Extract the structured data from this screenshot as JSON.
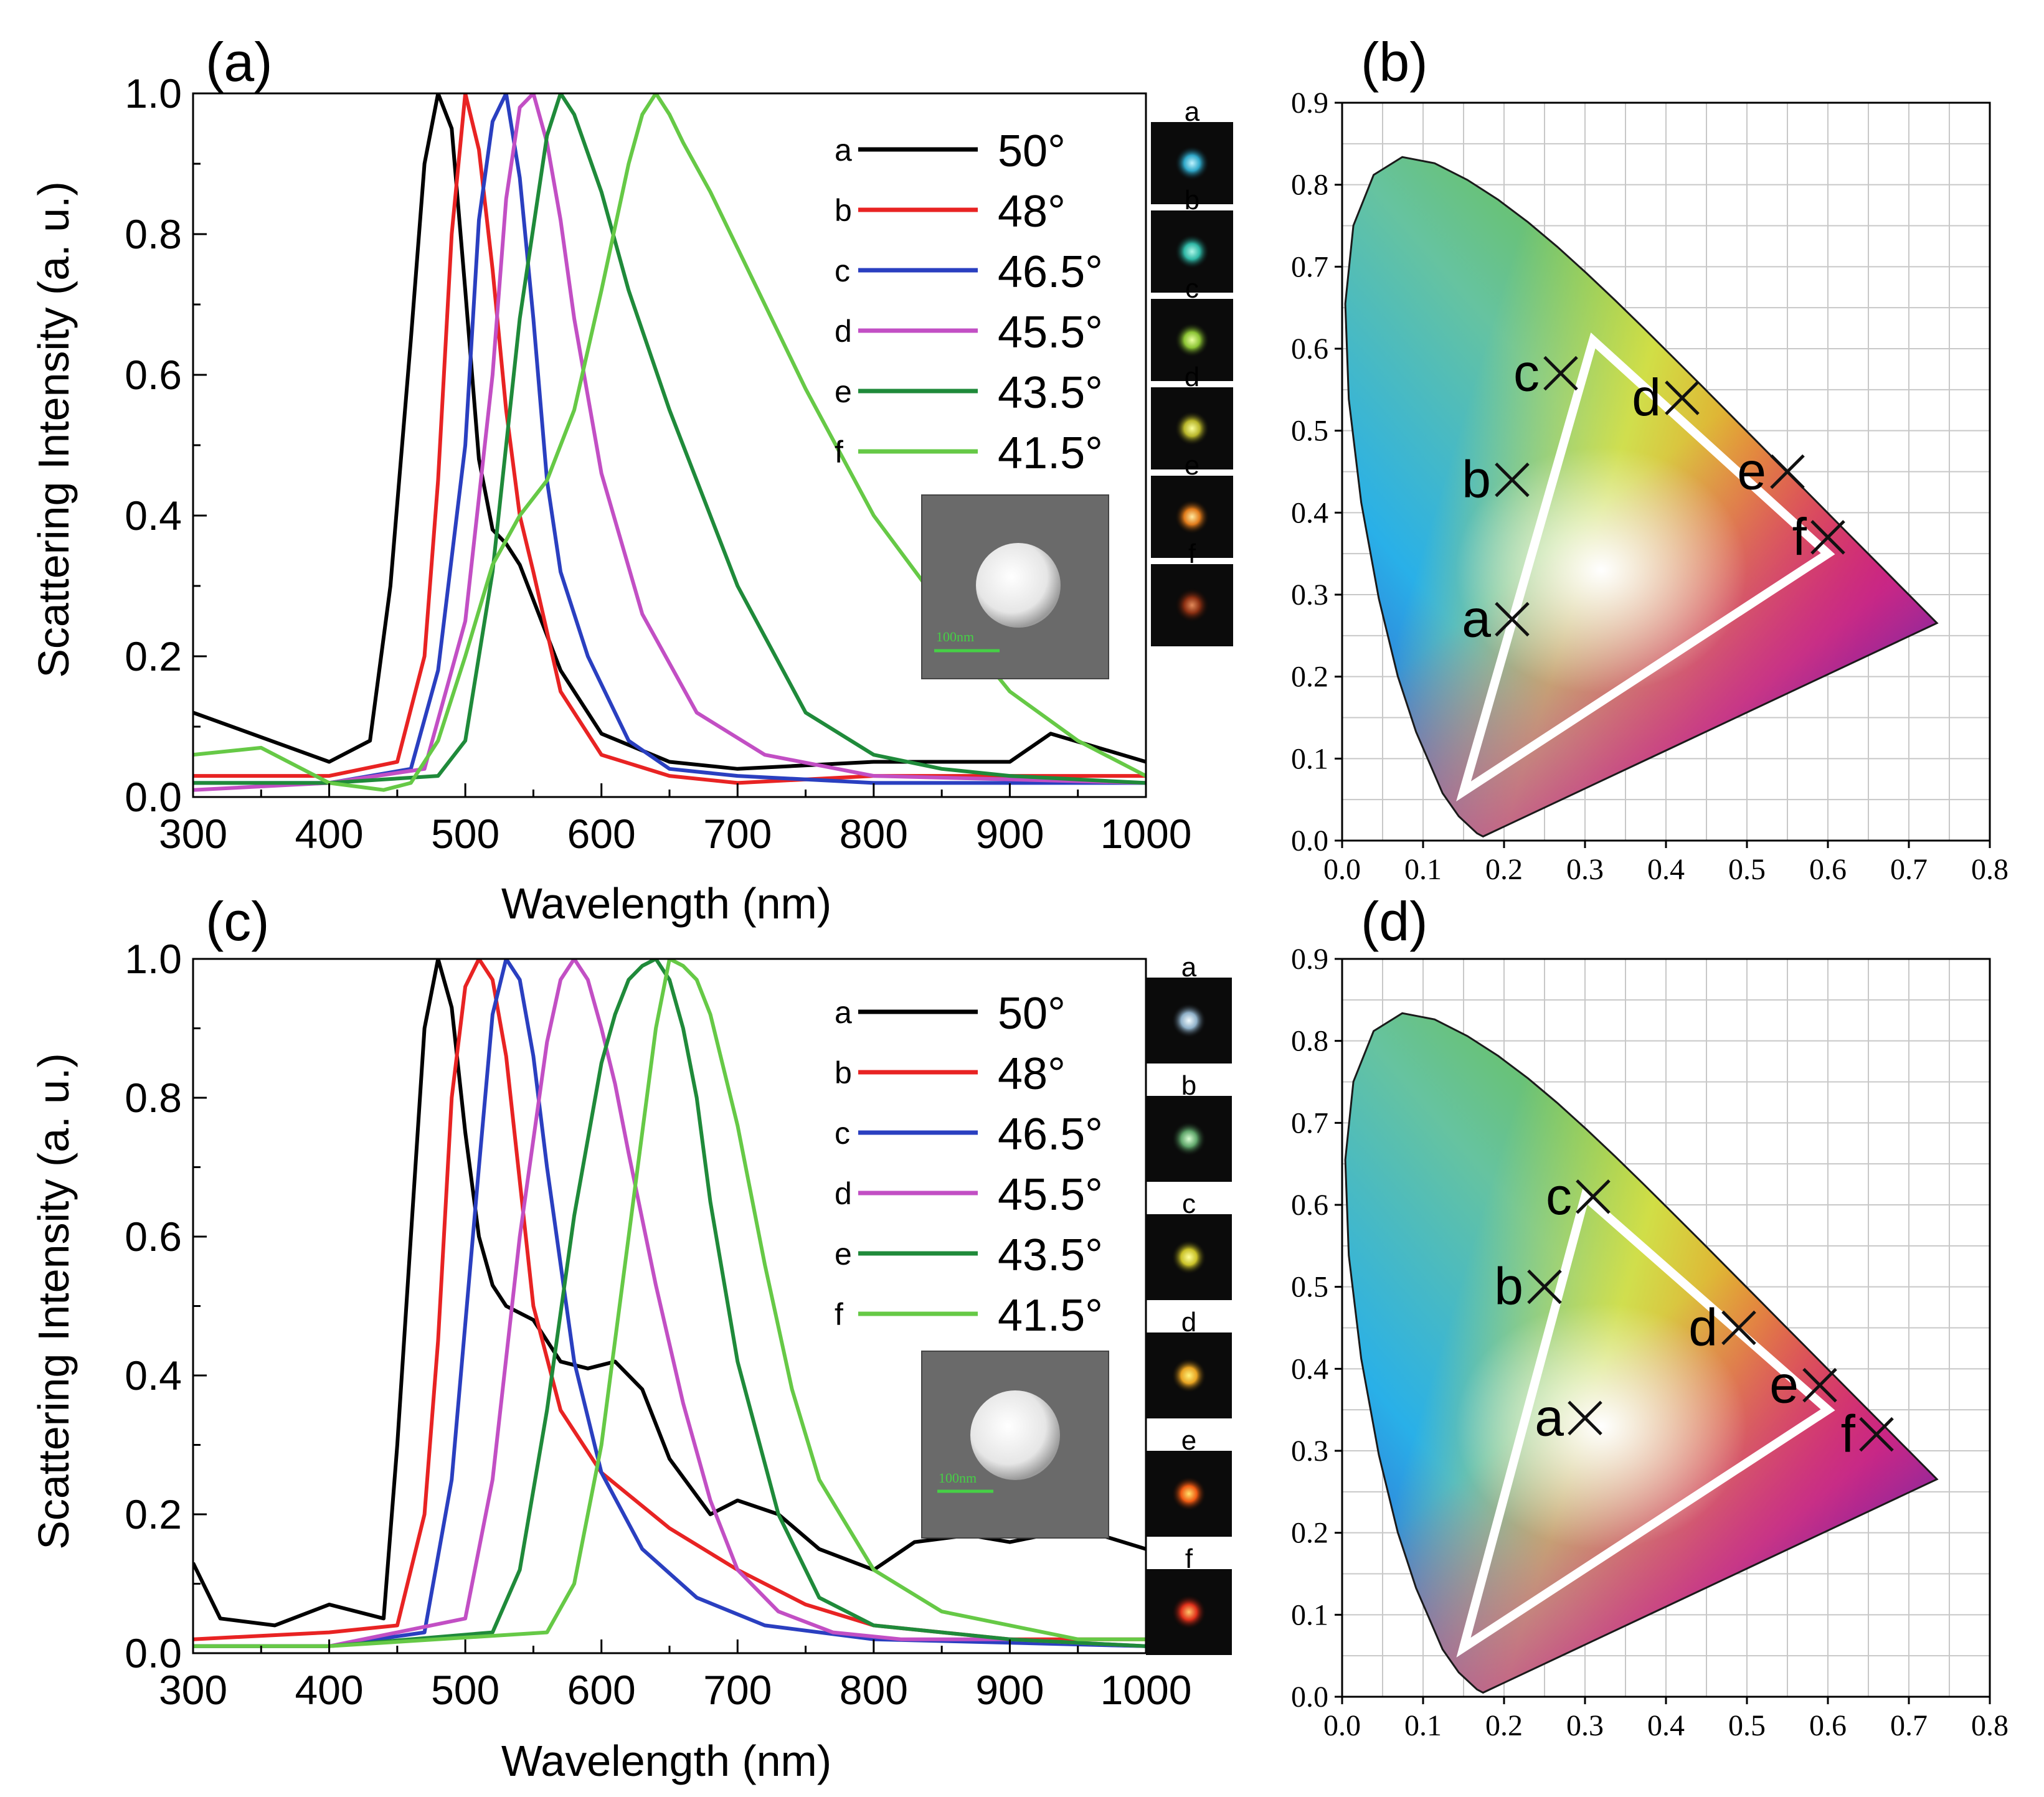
{
  "figure": {
    "panel_labels": [
      "(a)",
      "(b)",
      "(c)",
      "(d)"
    ],
    "thumb_letters": [
      "a",
      "b",
      "c",
      "d",
      "e",
      "f"
    ],
    "sem_scale_label": "100nm"
  },
  "colors": {
    "a": "#000000",
    "b": "#e82323",
    "c": "#2a3fc0",
    "d": "#c24fc4",
    "e": "#1f8a3a",
    "f": "#66c946",
    "gamut_triangle": "#ffffff",
    "grid": "#c8c8c8"
  },
  "chart_data": [
    {
      "panel": "(a)",
      "type": "line",
      "xlabel": "Wavelength (nm)",
      "ylabel": "Scattering Intensity (a. u.)",
      "xlim": [
        300,
        1000
      ],
      "ylim": [
        0.0,
        1.0
      ],
      "xticks": [
        "300",
        "400",
        "500",
        "600",
        "700",
        "800",
        "900",
        "1000"
      ],
      "yticks": [
        "0.0",
        "0.2",
        "0.4",
        "0.6",
        "0.8",
        "1.0"
      ],
      "series": [
        {
          "key": "a",
          "name": "50°",
          "x": [
            300,
            400,
            430,
            445,
            460,
            470,
            480,
            490,
            500,
            510,
            520,
            530,
            540,
            550,
            570,
            600,
            650,
            700,
            800,
            900,
            930,
            1000
          ],
          "values": [
            0.12,
            0.05,
            0.08,
            0.3,
            0.65,
            0.9,
            1.0,
            0.95,
            0.72,
            0.48,
            0.38,
            0.36,
            0.33,
            0.28,
            0.18,
            0.09,
            0.05,
            0.04,
            0.05,
            0.05,
            0.09,
            0.05
          ]
        },
        {
          "key": "b",
          "name": "48°",
          "x": [
            300,
            400,
            450,
            470,
            480,
            490,
            500,
            510,
            520,
            530,
            540,
            550,
            570,
            600,
            650,
            700,
            800,
            1000
          ],
          "values": [
            0.03,
            0.03,
            0.05,
            0.2,
            0.45,
            0.8,
            1.0,
            0.92,
            0.75,
            0.55,
            0.4,
            0.32,
            0.15,
            0.06,
            0.03,
            0.02,
            0.03,
            0.03
          ]
        },
        {
          "key": "c",
          "name": "46.5°",
          "x": [
            300,
            400,
            460,
            480,
            500,
            510,
            520,
            530,
            540,
            550,
            560,
            570,
            590,
            620,
            650,
            700,
            800,
            1000
          ],
          "values": [
            0.02,
            0.02,
            0.04,
            0.18,
            0.5,
            0.82,
            0.96,
            1.0,
            0.88,
            0.68,
            0.45,
            0.32,
            0.2,
            0.08,
            0.04,
            0.03,
            0.02,
            0.02
          ]
        },
        {
          "key": "d",
          "name": "45.5°",
          "x": [
            300,
            400,
            470,
            500,
            520,
            530,
            540,
            550,
            560,
            570,
            580,
            600,
            630,
            670,
            720,
            800,
            1000
          ],
          "values": [
            0.01,
            0.02,
            0.04,
            0.25,
            0.6,
            0.85,
            0.98,
            1.0,
            0.93,
            0.82,
            0.68,
            0.46,
            0.26,
            0.12,
            0.06,
            0.03,
            0.02
          ]
        },
        {
          "key": "e",
          "name": "43.5°",
          "x": [
            300,
            400,
            480,
            500,
            520,
            540,
            560,
            570,
            580,
            600,
            620,
            650,
            700,
            750,
            800,
            850,
            900,
            1000
          ],
          "values": [
            0.02,
            0.02,
            0.03,
            0.08,
            0.32,
            0.68,
            0.94,
            1.0,
            0.97,
            0.86,
            0.72,
            0.55,
            0.3,
            0.12,
            0.06,
            0.04,
            0.03,
            0.02
          ]
        },
        {
          "key": "f",
          "name": "41.5°",
          "x": [
            300,
            350,
            400,
            440,
            460,
            480,
            500,
            520,
            540,
            560,
            580,
            600,
            620,
            630,
            640,
            650,
            660,
            680,
            700,
            750,
            800,
            850,
            900,
            950,
            1000
          ],
          "values": [
            0.06,
            0.07,
            0.02,
            0.01,
            0.02,
            0.08,
            0.2,
            0.33,
            0.4,
            0.45,
            0.55,
            0.72,
            0.9,
            0.97,
            1.0,
            0.97,
            0.93,
            0.86,
            0.78,
            0.58,
            0.4,
            0.27,
            0.15,
            0.08,
            0.03
          ]
        }
      ]
    },
    {
      "panel": "(b)",
      "type": "scatter",
      "xlim": [
        0.0,
        0.8
      ],
      "ylim": [
        0.0,
        0.9
      ],
      "xticks": [
        "0.0",
        "0.1",
        "0.2",
        "0.3",
        "0.4",
        "0.5",
        "0.6",
        "0.7",
        "0.8"
      ],
      "yticks": [
        "0.0",
        "0.1",
        "0.2",
        "0.3",
        "0.4",
        "0.5",
        "0.6",
        "0.7",
        "0.8",
        "0.9"
      ],
      "gamut_triangle": [
        [
          0.15,
          0.06
        ],
        [
          0.31,
          0.61
        ],
        [
          0.6,
          0.35
        ]
      ],
      "points": [
        {
          "label": "a",
          "x": 0.21,
          "y": 0.27
        },
        {
          "label": "b",
          "x": 0.21,
          "y": 0.44
        },
        {
          "label": "c",
          "x": 0.27,
          "y": 0.57
        },
        {
          "label": "d",
          "x": 0.42,
          "y": 0.54
        },
        {
          "label": "e",
          "x": 0.55,
          "y": 0.45
        },
        {
          "label": "f",
          "x": 0.6,
          "y": 0.37
        }
      ]
    },
    {
      "panel": "(c)",
      "type": "line",
      "xlabel": "Wavelength (nm)",
      "ylabel": "Scattering Intensity (a. u.)",
      "xlim": [
        300,
        1000
      ],
      "ylim": [
        0.0,
        1.0
      ],
      "xticks": [
        "300",
        "400",
        "500",
        "600",
        "700",
        "800",
        "900",
        "1000"
      ],
      "yticks": [
        "0.0",
        "0.2",
        "0.4",
        "0.6",
        "0.8",
        "1.0"
      ],
      "series": [
        {
          "key": "a",
          "name": "50°",
          "x": [
            300,
            320,
            360,
            400,
            440,
            450,
            460,
            470,
            480,
            490,
            500,
            510,
            520,
            530,
            550,
            570,
            590,
            610,
            630,
            650,
            680,
            700,
            730,
            760,
            800,
            830,
            870,
            900,
            950,
            1000
          ],
          "values": [
            0.13,
            0.05,
            0.04,
            0.07,
            0.05,
            0.3,
            0.6,
            0.9,
            1.0,
            0.93,
            0.75,
            0.6,
            0.53,
            0.5,
            0.48,
            0.42,
            0.41,
            0.42,
            0.38,
            0.28,
            0.2,
            0.22,
            0.2,
            0.15,
            0.12,
            0.16,
            0.17,
            0.16,
            0.18,
            0.15
          ]
        },
        {
          "key": "b",
          "name": "48°",
          "x": [
            300,
            400,
            450,
            470,
            480,
            490,
            500,
            510,
            520,
            530,
            540,
            550,
            570,
            600,
            650,
            700,
            750,
            800,
            900,
            1000
          ],
          "values": [
            0.02,
            0.03,
            0.04,
            0.2,
            0.45,
            0.8,
            0.96,
            1.0,
            0.97,
            0.86,
            0.68,
            0.5,
            0.35,
            0.26,
            0.18,
            0.12,
            0.07,
            0.04,
            0.02,
            0.02
          ]
        },
        {
          "key": "c",
          "name": "46.5°",
          "x": [
            300,
            400,
            470,
            490,
            510,
            520,
            530,
            540,
            550,
            560,
            580,
            600,
            630,
            670,
            720,
            800,
            1000
          ],
          "values": [
            0.01,
            0.01,
            0.03,
            0.25,
            0.7,
            0.92,
            1.0,
            0.97,
            0.86,
            0.7,
            0.42,
            0.26,
            0.15,
            0.08,
            0.04,
            0.02,
            0.01
          ]
        },
        {
          "key": "d",
          "name": "45.5°",
          "x": [
            300,
            400,
            500,
            520,
            540,
            560,
            570,
            580,
            590,
            600,
            610,
            620,
            640,
            660,
            680,
            700,
            730,
            770,
            820,
            900,
            1000
          ],
          "values": [
            0.01,
            0.01,
            0.05,
            0.25,
            0.6,
            0.88,
            0.97,
            1.0,
            0.97,
            0.9,
            0.82,
            0.72,
            0.53,
            0.36,
            0.22,
            0.12,
            0.06,
            0.03,
            0.02,
            0.02,
            0.01
          ]
        },
        {
          "key": "e",
          "name": "43.5°",
          "x": [
            300,
            400,
            520,
            540,
            560,
            580,
            600,
            610,
            620,
            630,
            640,
            650,
            660,
            670,
            680,
            700,
            730,
            760,
            800,
            900,
            1000
          ],
          "values": [
            0.01,
            0.01,
            0.03,
            0.12,
            0.35,
            0.63,
            0.85,
            0.92,
            0.97,
            0.99,
            1.0,
            0.97,
            0.9,
            0.8,
            0.65,
            0.42,
            0.2,
            0.08,
            0.04,
            0.02,
            0.01
          ]
        },
        {
          "key": "f",
          "name": "41.5°",
          "x": [
            300,
            400,
            560,
            580,
            600,
            620,
            640,
            650,
            660,
            670,
            680,
            700,
            720,
            740,
            760,
            800,
            850,
            900,
            950,
            1000
          ],
          "values": [
            0.01,
            0.01,
            0.03,
            0.1,
            0.3,
            0.6,
            0.9,
            1.0,
            0.99,
            0.97,
            0.92,
            0.76,
            0.56,
            0.38,
            0.25,
            0.12,
            0.06,
            0.04,
            0.02,
            0.02
          ]
        }
      ]
    },
    {
      "panel": "(d)",
      "type": "scatter",
      "xlim": [
        0.0,
        0.8
      ],
      "ylim": [
        0.0,
        0.9
      ],
      "xticks": [
        "0.0",
        "0.1",
        "0.2",
        "0.3",
        "0.4",
        "0.5",
        "0.6",
        "0.7",
        "0.8"
      ],
      "yticks": [
        "0.0",
        "0.1",
        "0.2",
        "0.3",
        "0.4",
        "0.5",
        "0.6",
        "0.7",
        "0.8",
        "0.9"
      ],
      "gamut_triangle": [
        [
          0.15,
          0.06
        ],
        [
          0.3,
          0.61
        ],
        [
          0.6,
          0.35
        ]
      ],
      "points": [
        {
          "label": "a",
          "x": 0.3,
          "y": 0.34
        },
        {
          "label": "b",
          "x": 0.25,
          "y": 0.5
        },
        {
          "label": "c",
          "x": 0.31,
          "y": 0.61
        },
        {
          "label": "d",
          "x": 0.49,
          "y": 0.45
        },
        {
          "label": "e",
          "x": 0.59,
          "y": 0.38
        },
        {
          "label": "f",
          "x": 0.66,
          "y": 0.32
        }
      ]
    }
  ]
}
